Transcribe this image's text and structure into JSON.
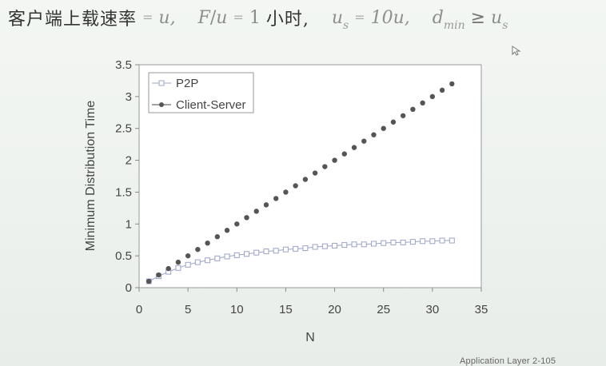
{
  "slide": {
    "heading": {
      "part1_cn": "客户端上载速率",
      "part1_eq": "=",
      "part1_var": "u,",
      "part2_a": "F",
      "part2_b": "/",
      "part2_c": "u",
      "part2_eq": "=",
      "part2_num": "1",
      "part2_cn": "小时,",
      "part3_var": "u",
      "part3_sub": "s",
      "part3_eq": "=",
      "part3_val": "10u,",
      "part4_var": "d",
      "part4_sub": "min",
      "part4_op": "≥",
      "part4_rhs": "u",
      "part4_rhs_sub": "s"
    },
    "footer": "Application Layer   2-105"
  },
  "chart_data": {
    "type": "scatter",
    "xlabel": "N",
    "ylabel": "Minimum Distribution Time",
    "xlim": [
      0,
      35
    ],
    "ylim": [
      0,
      3.5
    ],
    "xticks": [
      0,
      5,
      10,
      15,
      20,
      25,
      30,
      35
    ],
    "yticks": [
      0,
      0.5,
      1,
      1.5,
      2,
      2.5,
      3,
      3.5
    ],
    "grid": false,
    "legend_position": "top-left",
    "x": [
      1,
      2,
      3,
      4,
      5,
      6,
      7,
      8,
      9,
      10,
      11,
      12,
      13,
      14,
      15,
      16,
      17,
      18,
      19,
      20,
      21,
      22,
      23,
      24,
      25,
      26,
      27,
      28,
      29,
      30,
      31,
      32
    ],
    "series": [
      {
        "name": "P2P",
        "marker": "open-square",
        "color": "#9aa3c8",
        "values": [
          0.1,
          0.18,
          0.25,
          0.31,
          0.36,
          0.4,
          0.43,
          0.46,
          0.49,
          0.51,
          0.53,
          0.55,
          0.57,
          0.58,
          0.6,
          0.61,
          0.62,
          0.64,
          0.65,
          0.66,
          0.67,
          0.68,
          0.68,
          0.69,
          0.7,
          0.71,
          0.71,
          0.72,
          0.73,
          0.73,
          0.74,
          0.74
        ]
      },
      {
        "name": "Client-Server",
        "marker": "filled-circle",
        "color": "#555555",
        "values": [
          0.1,
          0.2,
          0.3,
          0.4,
          0.5,
          0.6,
          0.7,
          0.8,
          0.9,
          1.0,
          1.1,
          1.2,
          1.3,
          1.4,
          1.5,
          1.6,
          1.7,
          1.8,
          1.9,
          2.0,
          2.1,
          2.2,
          2.3,
          2.4,
          2.5,
          2.6,
          2.7,
          2.8,
          2.9,
          3.0,
          3.1,
          3.2
        ]
      }
    ]
  }
}
